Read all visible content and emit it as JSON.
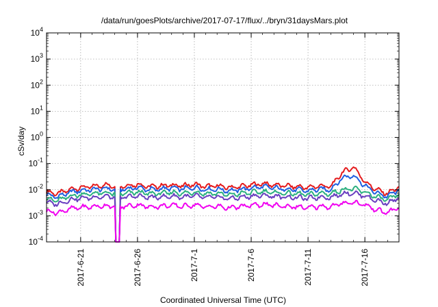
{
  "chart_data": {
    "type": "line",
    "title": "/data/run/goesPlots/archive/2017-07-17/flux/../bryn/31daysMars.plot",
    "xlabel": "Coordinated Universal Time (UTC)",
    "ylabel": "cSv/day",
    "y_scale": "log",
    "ylim": [
      0.0001,
      10000
    ],
    "yticks": [
      {
        "base": "10",
        "exp": "4"
      },
      {
        "base": "10",
        "exp": "3"
      },
      {
        "base": "10",
        "exp": "2"
      },
      {
        "base": "10",
        "exp": "1"
      },
      {
        "base": "10",
        "exp": "0"
      },
      {
        "base": "10",
        "exp": "-1"
      },
      {
        "base": "10",
        "exp": "-2"
      },
      {
        "base": "10",
        "exp": "-3"
      },
      {
        "base": "10",
        "exp": "-4"
      }
    ],
    "x_days_range": [
      0,
      31
    ],
    "xticks": [
      {
        "label": "2017-6-21",
        "day": 3
      },
      {
        "label": "2017-6-26",
        "day": 8
      },
      {
        "label": "2017-7-1",
        "day": 13
      },
      {
        "label": "2017-7-6",
        "day": 18
      },
      {
        "label": "2017-7-11",
        "day": 23
      },
      {
        "label": "2017-7-16",
        "day": 28
      }
    ],
    "grid": true,
    "dropout": {
      "day_start": 6.05,
      "day_end": 6.4,
      "value": 0.0001
    },
    "series": [
      {
        "name": "red",
        "color": "#e41a1c",
        "points": [
          [
            0,
            0.0082
          ],
          [
            1,
            0.007
          ],
          [
            2,
            0.01
          ],
          [
            3,
            0.012
          ],
          [
            4,
            0.013
          ],
          [
            5,
            0.015
          ],
          [
            6,
            0.014
          ],
          [
            7,
            0.014
          ],
          [
            8,
            0.016
          ],
          [
            9,
            0.013
          ],
          [
            10,
            0.014
          ],
          [
            11,
            0.015
          ],
          [
            12,
            0.014
          ],
          [
            13,
            0.016
          ],
          [
            14,
            0.013
          ],
          [
            15,
            0.014
          ],
          [
            16,
            0.012
          ],
          [
            17,
            0.013
          ],
          [
            18,
            0.015
          ],
          [
            19,
            0.017
          ],
          [
            20,
            0.015
          ],
          [
            21,
            0.014
          ],
          [
            22,
            0.013
          ],
          [
            23,
            0.012
          ],
          [
            24,
            0.014
          ],
          [
            25,
            0.013
          ],
          [
            26,
            0.045
          ],
          [
            27,
            0.075
          ],
          [
            28,
            0.02
          ],
          [
            29,
            0.01
          ],
          [
            30,
            0.007
          ],
          [
            31,
            0.013
          ]
        ]
      },
      {
        "name": "blue",
        "color": "#1f5fe0",
        "points": [
          [
            0,
            0.0062
          ],
          [
            1,
            0.0053
          ],
          [
            2,
            0.0078
          ],
          [
            3,
            0.0092
          ],
          [
            4,
            0.01
          ],
          [
            5,
            0.011
          ],
          [
            6,
            0.0105
          ],
          [
            7,
            0.0105
          ],
          [
            8,
            0.012
          ],
          [
            9,
            0.01
          ],
          [
            10,
            0.0105
          ],
          [
            11,
            0.0115
          ],
          [
            12,
            0.0105
          ],
          [
            13,
            0.012
          ],
          [
            14,
            0.01
          ],
          [
            15,
            0.0105
          ],
          [
            16,
            0.009
          ],
          [
            17,
            0.01
          ],
          [
            18,
            0.0115
          ],
          [
            19,
            0.013
          ],
          [
            20,
            0.0115
          ],
          [
            21,
            0.0105
          ],
          [
            22,
            0.01
          ],
          [
            23,
            0.009
          ],
          [
            24,
            0.0105
          ],
          [
            25,
            0.01
          ],
          [
            26,
            0.028
          ],
          [
            27,
            0.035
          ],
          [
            28,
            0.014
          ],
          [
            29,
            0.0075
          ],
          [
            30,
            0.0055
          ],
          [
            31,
            0.01
          ]
        ]
      },
      {
        "name": "green",
        "color": "#2bb07f",
        "points": [
          [
            0,
            0.0045
          ],
          [
            1,
            0.0038
          ],
          [
            2,
            0.0055
          ],
          [
            3,
            0.0065
          ],
          [
            4,
            0.007
          ],
          [
            5,
            0.0075
          ],
          [
            6,
            0.0072
          ],
          [
            7,
            0.0072
          ],
          [
            8,
            0.008
          ],
          [
            9,
            0.007
          ],
          [
            10,
            0.0072
          ],
          [
            11,
            0.0078
          ],
          [
            12,
            0.0072
          ],
          [
            13,
            0.008
          ],
          [
            14,
            0.007
          ],
          [
            15,
            0.0072
          ],
          [
            16,
            0.0062
          ],
          [
            17,
            0.007
          ],
          [
            18,
            0.0078
          ],
          [
            19,
            0.0085
          ],
          [
            20,
            0.0078
          ],
          [
            21,
            0.0072
          ],
          [
            22,
            0.007
          ],
          [
            23,
            0.0064
          ],
          [
            24,
            0.0072
          ],
          [
            25,
            0.007
          ],
          [
            26,
            0.01
          ],
          [
            27,
            0.011
          ],
          [
            28,
            0.008
          ],
          [
            29,
            0.0052
          ],
          [
            30,
            0.004
          ],
          [
            31,
            0.007
          ]
        ]
      },
      {
        "name": "purple",
        "color": "#6a3fc0",
        "points": [
          [
            0,
            0.0033
          ],
          [
            1,
            0.0028
          ],
          [
            2,
            0.004
          ],
          [
            3,
            0.0047
          ],
          [
            4,
            0.005
          ],
          [
            5,
            0.0055
          ],
          [
            6,
            0.0052
          ],
          [
            7,
            0.0052
          ],
          [
            8,
            0.0058
          ],
          [
            9,
            0.005
          ],
          [
            10,
            0.0052
          ],
          [
            11,
            0.0056
          ],
          [
            12,
            0.0052
          ],
          [
            13,
            0.0058
          ],
          [
            14,
            0.005
          ],
          [
            15,
            0.0052
          ],
          [
            16,
            0.0045
          ],
          [
            17,
            0.005
          ],
          [
            18,
            0.0056
          ],
          [
            19,
            0.006
          ],
          [
            20,
            0.0056
          ],
          [
            21,
            0.0052
          ],
          [
            22,
            0.005
          ],
          [
            23,
            0.0046
          ],
          [
            24,
            0.0052
          ],
          [
            25,
            0.005
          ],
          [
            26,
            0.007
          ],
          [
            27,
            0.0075
          ],
          [
            28,
            0.0058
          ],
          [
            29,
            0.0038
          ],
          [
            30,
            0.003
          ],
          [
            31,
            0.005
          ]
        ]
      },
      {
        "name": "magenta",
        "color": "#f000f0",
        "points": [
          [
            0,
            0.0015
          ],
          [
            1,
            0.0013
          ],
          [
            2,
            0.0018
          ],
          [
            3,
            0.0021
          ],
          [
            4,
            0.0022
          ],
          [
            5,
            0.0024
          ],
          [
            6,
            0.0023
          ],
          [
            7,
            0.0023
          ],
          [
            8,
            0.0026
          ],
          [
            9,
            0.0022
          ],
          [
            10,
            0.0023
          ],
          [
            11,
            0.0025
          ],
          [
            12,
            0.0023
          ],
          [
            13,
            0.0026
          ],
          [
            14,
            0.0022
          ],
          [
            15,
            0.0023
          ],
          [
            16,
            0.002
          ],
          [
            17,
            0.0022
          ],
          [
            18,
            0.0025
          ],
          [
            19,
            0.0027
          ],
          [
            20,
            0.0025
          ],
          [
            21,
            0.0023
          ],
          [
            22,
            0.0022
          ],
          [
            23,
            0.002
          ],
          [
            24,
            0.0023
          ],
          [
            25,
            0.0022
          ],
          [
            26,
            0.003
          ],
          [
            27,
            0.0033
          ],
          [
            28,
            0.0026
          ],
          [
            29,
            0.0017
          ],
          [
            30,
            0.0013
          ],
          [
            31,
            0.0022
          ]
        ]
      }
    ]
  }
}
